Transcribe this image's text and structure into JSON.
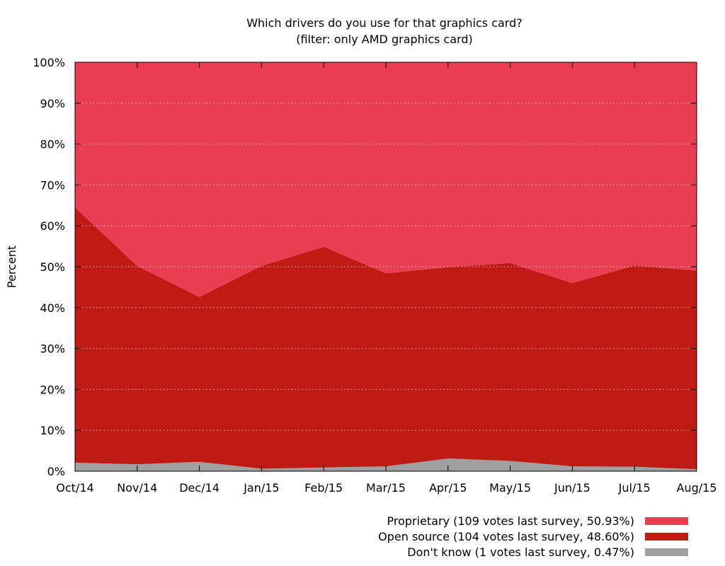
{
  "chart_data": {
    "type": "area",
    "stacked": true,
    "title": "Which drivers do you use for that graphics card?",
    "subtitle": "(filter: only AMD graphics card)",
    "xlabel": "",
    "ylabel": "Percent",
    "ylim": [
      0,
      100
    ],
    "y_ticks": [
      "0%",
      "10%",
      "20%",
      "30%",
      "40%",
      "50%",
      "60%",
      "70%",
      "80%",
      "90%",
      "100%"
    ],
    "categories": [
      "Oct/14",
      "Nov/14",
      "Dec/14",
      "Jan/15",
      "Feb/15",
      "Mar/15",
      "Apr/15",
      "May/15",
      "Jun/15",
      "Jul/15",
      "Aug/15"
    ],
    "grid": true,
    "legend_position": "bottom-right",
    "series": [
      {
        "name": "Don't know (1 votes last survey, 0.47%)",
        "color": "#a0a0a0",
        "values": [
          2.1,
          1.7,
          2.3,
          0.6,
          0.9,
          1.2,
          3.1,
          2.5,
          1.2,
          1.1,
          0.47
        ]
      },
      {
        "name": "Open source (104 votes last survey, 48.60%)",
        "color": "#c01a15",
        "values": [
          62.4,
          48.5,
          40.3,
          49.6,
          54.0,
          47.2,
          46.8,
          48.4,
          44.8,
          49.2,
          48.6
        ]
      },
      {
        "name": "Proprietary (109 votes last survey, 50.93%)",
        "color": "#e93d52",
        "values": [
          35.5,
          49.8,
          57.4,
          49.8,
          45.1,
          51.6,
          50.1,
          49.1,
          54.0,
          49.7,
          50.93
        ]
      }
    ]
  }
}
